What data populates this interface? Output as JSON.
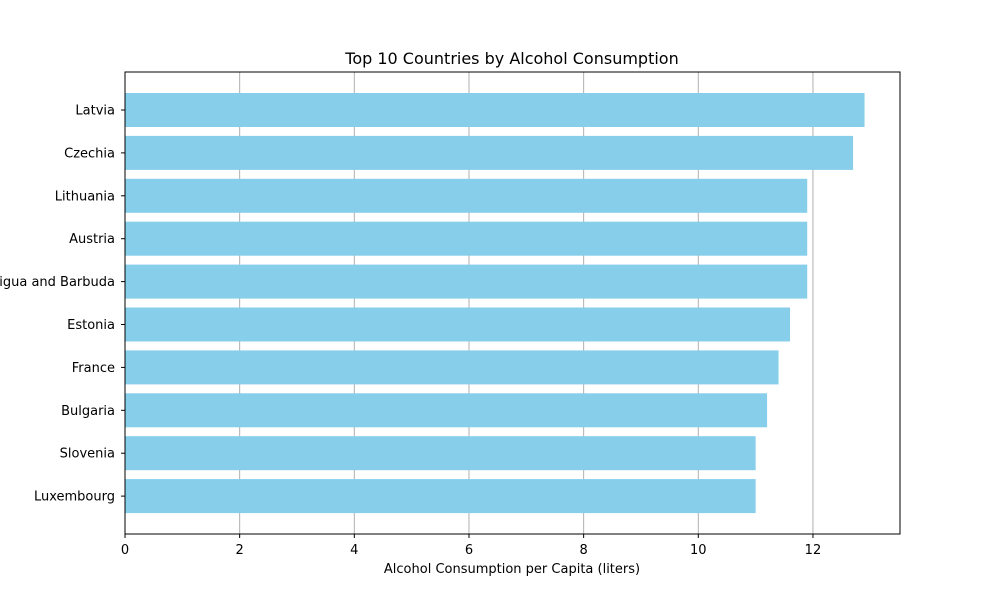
{
  "chart_data": {
    "type": "bar",
    "orientation": "horizontal",
    "title": "Top 10 Countries by Alcohol Consumption",
    "xlabel": "Alcohol Consumption per Capita (liters)",
    "ylabel": "",
    "categories": [
      "Latvia",
      "Czechia",
      "Lithuania",
      "Austria",
      "Antigua and Barbuda",
      "Estonia",
      "France",
      "Bulgaria",
      "Slovenia",
      "Luxembourg"
    ],
    "values": [
      12.9,
      12.7,
      11.9,
      11.9,
      11.9,
      11.6,
      11.4,
      11.2,
      11.0,
      11.0
    ],
    "xlim": [
      0,
      13.5
    ],
    "xticks": [
      0,
      2,
      4,
      6,
      8,
      10,
      12
    ],
    "grid": "x-axis vertical lines",
    "legend": "none",
    "colors": {
      "bar": "#87ceeb",
      "grid": "#b0b0b0",
      "axis": "#000000"
    }
  }
}
